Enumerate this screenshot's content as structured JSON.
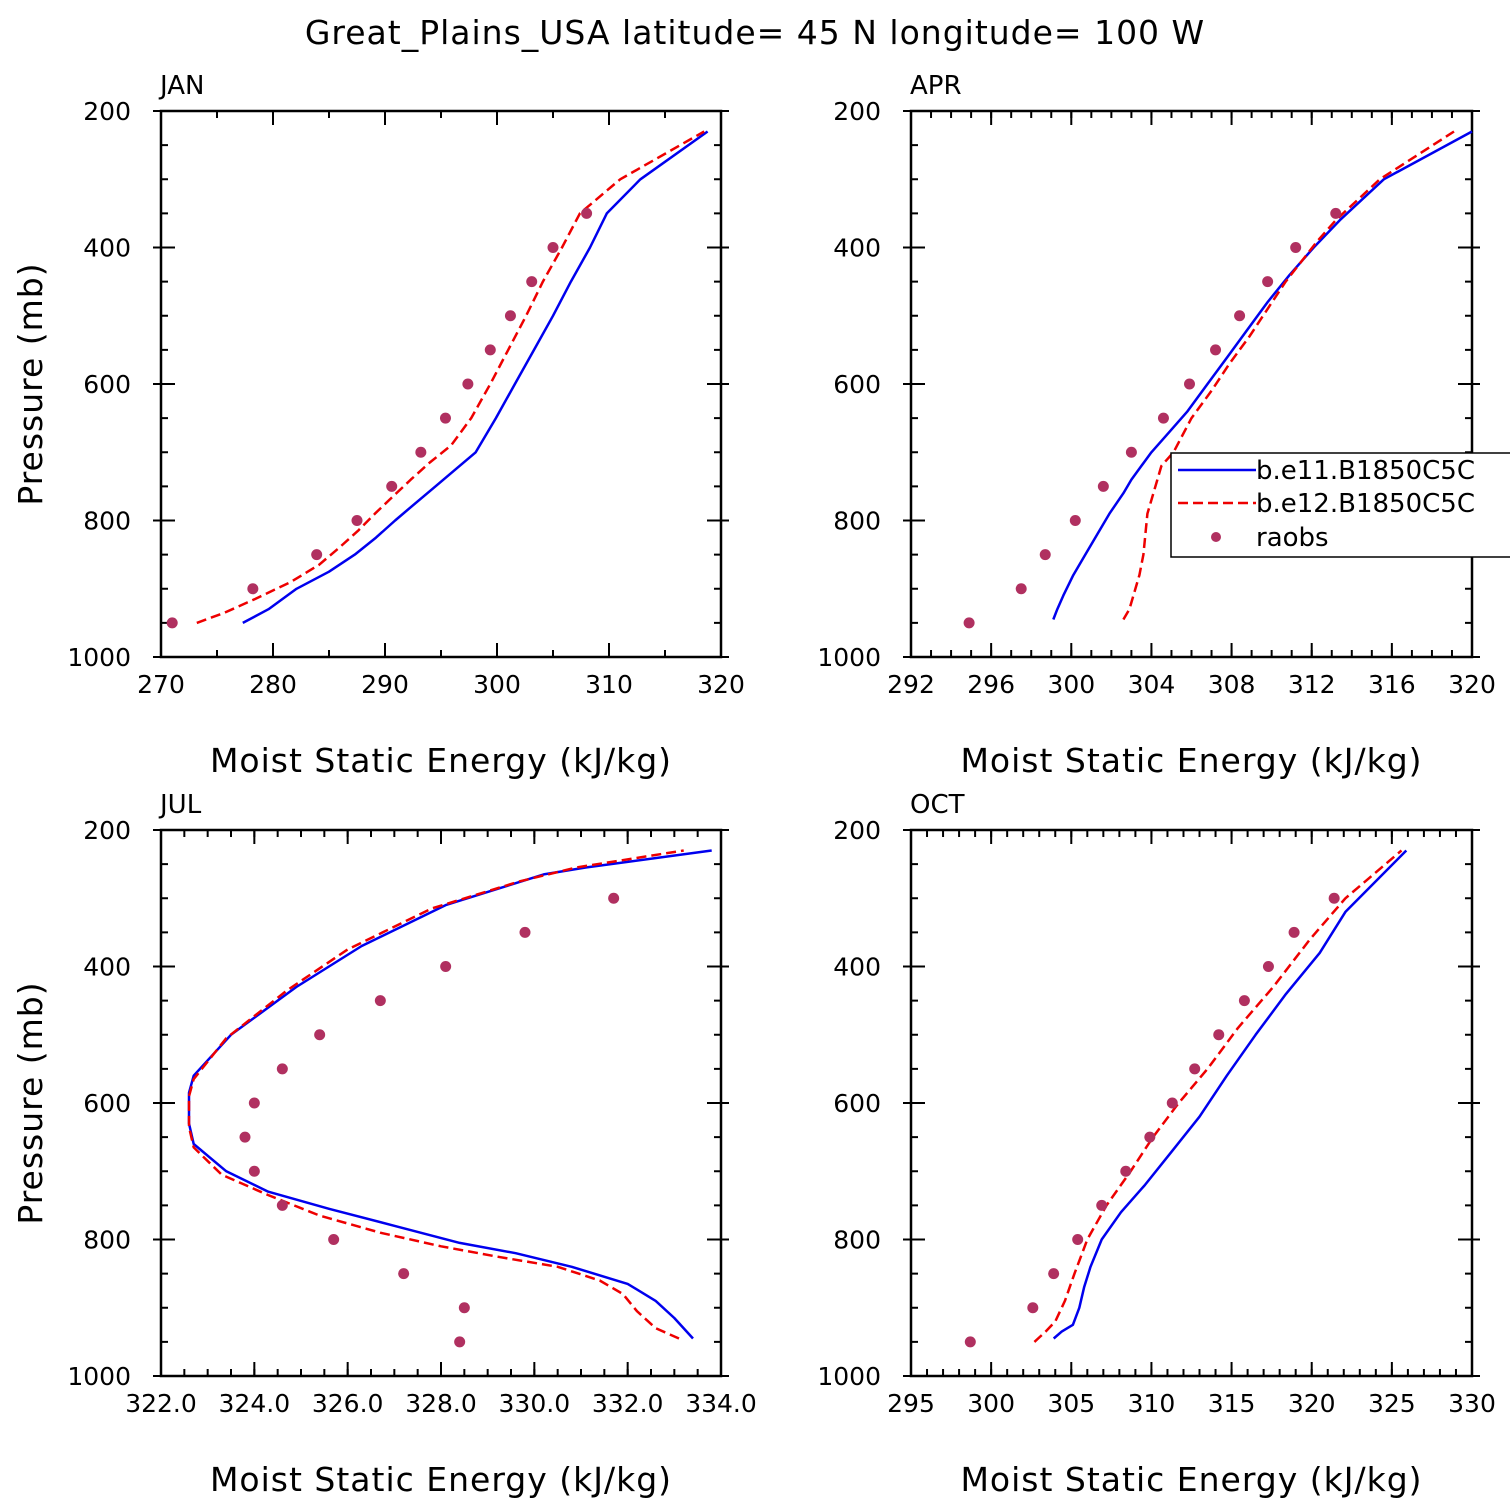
{
  "chart_data": {
    "type": "line",
    "title": "Great_Plains_USA  latitude= 45 N longitude= 100 W",
    "legend": {
      "placement": "right-middle of APR panel",
      "entries": [
        {
          "name": "b.e11.B1850C5C",
          "style": "solid",
          "color": "#0000ee"
        },
        {
          "name": "b.e12.B1850C5C",
          "style": "dashed",
          "color": "#ee0000"
        },
        {
          "name": "raobs",
          "style": "marker",
          "color": "#b03060"
        }
      ]
    },
    "panels": [
      {
        "label": "JAN",
        "xlabel": "Moist Static Energy (kJ/kg)",
        "ylabel": "Pressure (mb)",
        "xlim": [
          270,
          320
        ],
        "ylim": [
          200,
          1000
        ],
        "xticks": [
          270,
          280,
          290,
          300,
          310,
          320
        ],
        "xticklabels": [
          "270",
          "280",
          "290",
          "300",
          "310",
          "320"
        ],
        "xminor": 5,
        "yticks": [
          200,
          400,
          600,
          800,
          1000
        ],
        "yticklabels": [
          "200",
          "400",
          "600",
          "800",
          "1000"
        ],
        "series": [
          {
            "name": "b.e11.B1850C5C",
            "x": [
              277.3,
              279.6,
              282.1,
              285.0,
              287.3,
              289.2,
              290.9,
              292.7,
              294.5,
              296.3,
              298.1,
              299.9,
              301.6,
              303.3,
              305.0,
              306.6,
              308.3,
              309.8,
              312.8,
              318.8
            ],
            "p": [
              950,
              930,
              900,
              875,
              850,
              825,
              800,
              775,
              750,
              725,
              700,
              650,
              600,
              550,
              500,
              450,
              400,
              350,
              300,
              230
            ]
          },
          {
            "name": "b.e12.B1850C5C",
            "x": [
              273.2,
              275.7,
              278.4,
              281.6,
              284.1,
              285.9,
              287.6,
              289.1,
              290.7,
              292.3,
              294.0,
              295.9,
              297.7,
              299.4,
              301.0,
              302.6,
              304.1,
              305.8,
              307.4,
              311.0,
              318.5
            ],
            "p": [
              950,
              935,
              915,
              890,
              865,
              840,
              815,
              790,
              765,
              740,
              715,
              690,
              650,
              600,
              550,
              500,
              450,
              400,
              350,
              300,
              230
            ]
          }
        ],
        "points": {
          "name": "raobs",
          "x": [
            271.0,
            278.2,
            283.9,
            287.5,
            290.6,
            293.2,
            295.4,
            297.4,
            299.4,
            301.2,
            303.1,
            305.0,
            308.0
          ],
          "p": [
            950,
            900,
            850,
            800,
            750,
            700,
            650,
            600,
            550,
            500,
            450,
            400,
            350
          ]
        }
      },
      {
        "label": "APR",
        "xlabel": "Moist Static Energy (kJ/kg)",
        "ylabel": "",
        "xlim": [
          292,
          320
        ],
        "ylim": [
          200,
          1000
        ],
        "xticks": [
          292,
          296,
          300,
          304,
          308,
          312,
          316,
          320
        ],
        "xticklabels": [
          "292",
          "296",
          "300",
          "304",
          "308",
          "312",
          "316",
          "320"
        ],
        "xminor": 1,
        "yticks": [
          200,
          400,
          600,
          800,
          1000
        ],
        "yticklabels": [
          "200",
          "400",
          "600",
          "800",
          "1000"
        ],
        "series": [
          {
            "name": "b.e11.B1850C5C",
            "x": [
              299.1,
              299.3,
              299.6,
              300.1,
              300.7,
              301.3,
              301.9,
              302.6,
              303.0,
              303.5,
              304.0,
              304.9,
              305.8,
              306.8,
              307.8,
              308.8,
              309.8,
              310.9,
              312.1,
              313.4,
              315.6,
              320.0
            ],
            "p": [
              945,
              930,
              910,
              880,
              850,
              820,
              790,
              760,
              740,
              720,
              700,
              670,
              640,
              600,
              560,
              520,
              480,
              440,
              400,
              360,
              300,
              230
            ]
          },
          {
            "name": "b.e12.B1850C5C",
            "x": [
              302.6,
              302.9,
              303.1,
              303.4,
              303.6,
              303.7,
              303.8,
              304.1,
              304.3,
              304.5,
              305.1,
              306.0,
              307.0,
              307.9,
              308.9,
              309.8,
              310.7,
              311.5,
              312.3,
              313.2,
              315.4,
              319.1
            ],
            "p": [
              945,
              930,
              910,
              880,
              850,
              820,
              790,
              760,
              740,
              720,
              700,
              650,
              610,
              570,
              530,
              490,
              450,
              420,
              390,
              360,
              300,
              230
            ]
          }
        ],
        "points": {
          "name": "raobs",
          "x": [
            294.9,
            297.5,
            298.7,
            300.2,
            301.6,
            303.0,
            304.6,
            305.9,
            307.2,
            308.4,
            309.8,
            311.2,
            313.2
          ],
          "p": [
            950,
            900,
            850,
            800,
            750,
            700,
            650,
            600,
            550,
            500,
            450,
            400,
            350
          ]
        }
      },
      {
        "label": "JUL",
        "xlabel": "Moist Static Energy (kJ/kg)",
        "ylabel": "Pressure (mb)",
        "xlim": [
          322,
          334
        ],
        "ylim": [
          200,
          1000
        ],
        "xticks": [
          322,
          324,
          326,
          328,
          330,
          332,
          334
        ],
        "xticklabels": [
          "322.0",
          "324.0",
          "326.0",
          "328.0",
          "330.0",
          "332.0",
          "334.0"
        ],
        "xminor": 0.5,
        "yticks": [
          200,
          400,
          600,
          800,
          1000
        ],
        "yticklabels": [
          "200",
          "400",
          "600",
          "800",
          "1000"
        ],
        "series": [
          {
            "name": "b.e11.B1850C5C",
            "x": [
              333.4,
              333.0,
              332.6,
              332.0,
              330.8,
              329.6,
              328.4,
              327.0,
              325.6,
              324.3,
              323.4,
              322.7,
              322.6,
              322.6,
              322.7,
              323.5,
              324.9,
              326.3,
              328.1,
              330.2,
              331.1,
              333.8
            ],
            "p": [
              945,
              915,
              890,
              865,
              840,
              820,
              805,
              780,
              755,
              730,
              700,
              660,
              630,
              585,
              560,
              500,
              430,
              370,
              310,
              265,
              255,
              230
            ]
          },
          {
            "name": "b.e12.B1850C5C",
            "x": [
              333.1,
              332.6,
              332.2,
              331.9,
              331.4,
              330.5,
              329.2,
              328.0,
              326.7,
              325.4,
              324.3,
              323.3,
              322.7,
              322.6,
              322.6,
              322.7,
              323.4,
              324.7,
              326.0,
              327.8,
              329.7,
              330.9,
              333.2
            ],
            "p": [
              945,
              930,
              905,
              880,
              860,
              840,
              825,
              810,
              790,
              765,
              735,
              705,
              665,
              635,
              590,
              565,
              505,
              435,
              375,
              315,
              275,
              255,
              230
            ]
          }
        ],
        "points": {
          "name": "raobs",
          "x": [
            328.4,
            328.5,
            327.2,
            325.7,
            324.6,
            324.0,
            323.8,
            324.0,
            324.6,
            325.4,
            326.7,
            328.1,
            329.8,
            331.7
          ],
          "p": [
            950,
            900,
            850,
            800,
            750,
            700,
            650,
            600,
            550,
            500,
            450,
            400,
            350,
            300
          ]
        }
      },
      {
        "label": "OCT",
        "xlabel": "Moist Static Energy (kJ/kg)",
        "ylabel": "",
        "xlim": [
          295,
          330
        ],
        "ylim": [
          200,
          1000
        ],
        "xticks": [
          295,
          300,
          305,
          310,
          315,
          320,
          325,
          330
        ],
        "xticklabels": [
          "295",
          "300",
          "305",
          "310",
          "315",
          "320",
          "325",
          "330"
        ],
        "xminor": 1,
        "yticks": [
          200,
          400,
          600,
          800,
          1000
        ],
        "yticklabels": [
          "200",
          "400",
          "600",
          "800",
          "1000"
        ],
        "series": [
          {
            "name": "b.e11.B1850C5C",
            "x": [
              303.9,
              304.4,
              305.1,
              305.5,
              305.8,
              306.2,
              306.9,
              308.1,
              309.6,
              311.3,
              313.0,
              314.7,
              316.5,
              318.4,
              320.5,
              322.1,
              325.9
            ],
            "p": [
              945,
              935,
              925,
              900,
              870,
              840,
              800,
              760,
              720,
              670,
              620,
              560,
              500,
              440,
              380,
              320,
              230
            ]
          },
          {
            "name": "b.e12.B1850C5C",
            "x": [
              302.7,
              303.4,
              304.0,
              304.6,
              305.2,
              306.0,
              307.2,
              308.7,
              310.1,
              311.7,
              313.5,
              315.4,
              317.6,
              319.9,
              322.1,
              325.6
            ],
            "p": [
              950,
              935,
              920,
              890,
              850,
              800,
              750,
              700,
              650,
              600,
              550,
              490,
              430,
              360,
              300,
              230
            ]
          }
        ],
        "points": {
          "name": "raobs",
          "x": [
            298.7,
            302.6,
            303.9,
            305.4,
            306.9,
            308.4,
            309.9,
            311.3,
            312.7,
            314.2,
            315.8,
            317.3,
            318.9,
            321.4
          ],
          "p": [
            950,
            900,
            850,
            800,
            750,
            700,
            650,
            600,
            550,
            500,
            450,
            400,
            350,
            300
          ]
        }
      }
    ]
  }
}
